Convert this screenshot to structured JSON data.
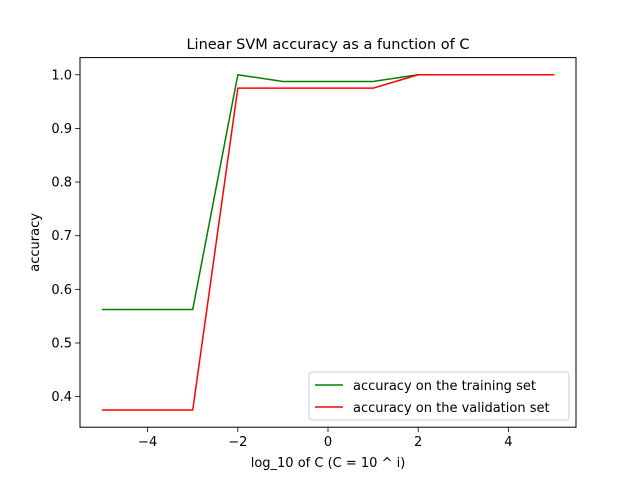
{
  "chart_data": {
    "type": "line",
    "title": "Linear SVM accuracy as a function of C",
    "xlabel": "log_10 of C (C = 10 ^ i)",
    "ylabel": "accuracy",
    "xlim": [
      -5.5,
      5.5
    ],
    "ylim": [
      0.343,
      1.032
    ],
    "x_ticks": [
      -4,
      -2,
      0,
      2,
      4
    ],
    "x_tick_labels": [
      "−4",
      "−2",
      "0",
      "2",
      "4"
    ],
    "y_ticks": [
      0.4,
      0.5,
      0.6,
      0.7,
      0.8,
      0.9,
      1.0
    ],
    "y_tick_labels": [
      "0.4",
      "0.5",
      "0.6",
      "0.7",
      "0.8",
      "0.9",
      "1.0"
    ],
    "grid": false,
    "legend_position": "bottom-right",
    "x": [
      -5,
      -4,
      -3,
      -2,
      -1,
      0,
      1,
      2,
      3,
      4,
      5
    ],
    "series": [
      {
        "name": "accuracy on the training set",
        "color": "#008000",
        "values": [
          0.5625,
          0.5625,
          0.5625,
          1.0,
          0.9875,
          0.9875,
          0.9875,
          1.0,
          1.0,
          1.0,
          1.0
        ]
      },
      {
        "name": "accuracy on the validation set",
        "color": "#ff0000",
        "values": [
          0.375,
          0.375,
          0.375,
          0.975,
          0.975,
          0.975,
          0.975,
          1.0,
          1.0,
          1.0,
          1.0
        ]
      }
    ]
  }
}
